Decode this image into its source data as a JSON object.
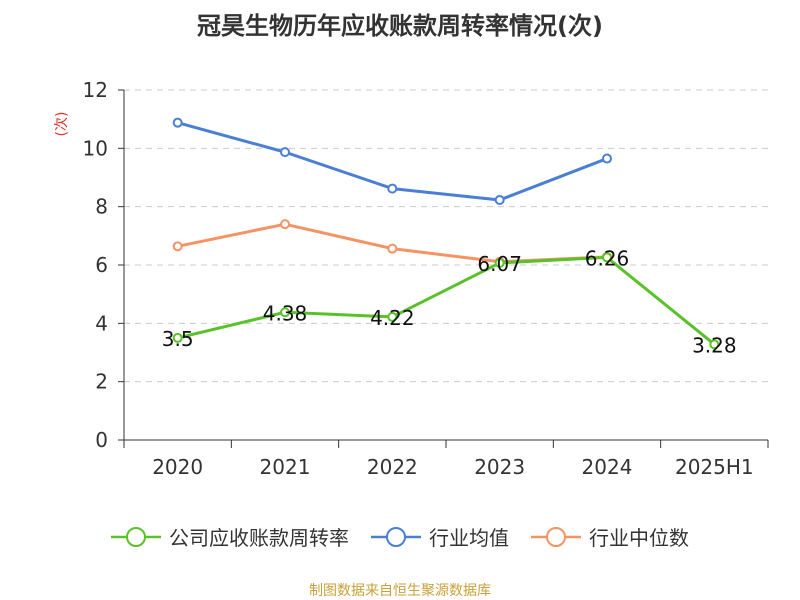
{
  "chart_data": {
    "type": "line",
    "title": "冠昊生物历年应收账款周转率情况(次)",
    "ylabel": "(次)",
    "categories": [
      "2020",
      "2021",
      "2022",
      "2023",
      "2024",
      "2025H1"
    ],
    "ylim": [
      0,
      12
    ],
    "yticks": [
      0,
      2,
      4,
      6,
      8,
      10,
      12
    ],
    "grid": "horizontal-dashed",
    "legend": "bottom",
    "series": [
      {
        "name": "公司应收账款周转率",
        "color": "#5ac229",
        "values": [
          3.5,
          4.38,
          4.22,
          6.07,
          6.26,
          3.28
        ],
        "labels": [
          "3.5",
          "4.38",
          "4.22",
          "6.07",
          "6.26",
          "3.28"
        ]
      },
      {
        "name": "行业均值",
        "color": "#4a7fd6",
        "values": [
          10.88,
          9.87,
          8.62,
          8.23,
          9.65,
          null
        ]
      },
      {
        "name": "行业中位数",
        "color": "#f59362",
        "values": [
          6.64,
          7.4,
          6.56,
          6.11,
          6.28,
          null
        ]
      }
    ]
  },
  "source": "制图数据来自恒生聚源数据库"
}
